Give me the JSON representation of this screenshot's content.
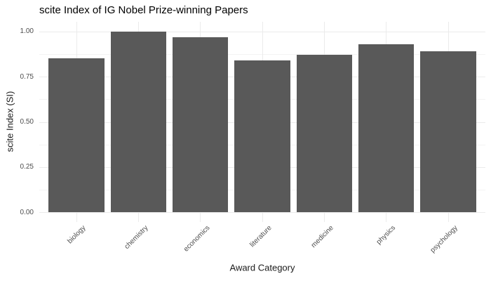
{
  "chart_data": {
    "type": "bar",
    "title": "scite Index of IG Nobel Prize-winning Papers",
    "xlabel": "Award Category",
    "ylabel": "scite Index (SI)",
    "categories": [
      "biology",
      "chemistry",
      "economics",
      "literature",
      "medicine",
      "physics",
      "psychology"
    ],
    "values": [
      0.85,
      1.0,
      0.97,
      0.84,
      0.87,
      0.93,
      0.89
    ],
    "ylim": [
      0,
      1.0
    ],
    "y_major_ticks": [
      0,
      0.25,
      0.5,
      0.75,
      1.0
    ],
    "y_tick_labels": [
      "0.00",
      "0.25",
      "0.50",
      "0.75",
      "1.00"
    ],
    "y_minor_ticks": [
      0.125,
      0.375,
      0.625,
      0.875
    ],
    "grid": "horizontal major+minor, vertical major at each category",
    "legend": "none",
    "colors": {
      "bar_fill": "#595959",
      "grid_major": "#ebebeb",
      "grid_minor": "#f4f4f4",
      "tick_label": "#4d4d4d",
      "axis_title": "#1a1a1a",
      "title": "#000000",
      "background": "#ffffff"
    }
  }
}
